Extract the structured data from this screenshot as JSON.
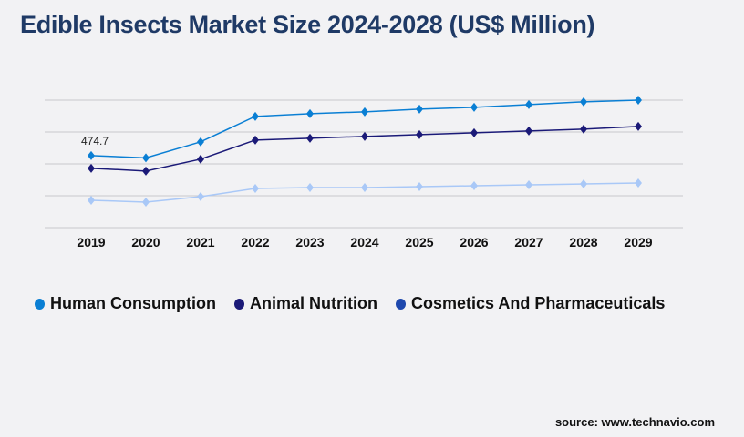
{
  "title": "Edible Insects Market Size 2024-2028 (US$ Million)",
  "source": "source: www.technavio.com",
  "chart_data": {
    "type": "line",
    "title": "Edible Insects Market Size 2024-2028 (US$ Million)",
    "categories": [
      "2019",
      "2020",
      "2021",
      "2022",
      "2023",
      "2024",
      "2025",
      "2026",
      "2027",
      "2028",
      "2029"
    ],
    "ylim": [
      0,
      840
    ],
    "grid": true,
    "legend_position": "bottom",
    "series": [
      {
        "name": "Human Consumption",
        "color": "#0a7fd4",
        "marker_color": "#0a7fd4",
        "values": [
          474.7,
          460,
          565,
          733,
          751,
          763,
          781,
          793,
          811,
          829,
          840
        ]
      },
      {
        "name": "Animal Nutrition",
        "color": "#1b1a78",
        "marker_color": "#1b1a78",
        "values": [
          391,
          373,
          451,
          577,
          589,
          601,
          613,
          625,
          637,
          649,
          667
        ]
      },
      {
        "name": "Cosmetics And Pharmaceuticals",
        "color": "#a9c8f7",
        "marker_color": "#1e48ad",
        "values": [
          180,
          168,
          204,
          258,
          264,
          264,
          270,
          276,
          282,
          288,
          294
        ]
      }
    ],
    "annotations": [
      {
        "series": "Human Consumption",
        "category": "2019",
        "text": "474.7"
      }
    ]
  }
}
